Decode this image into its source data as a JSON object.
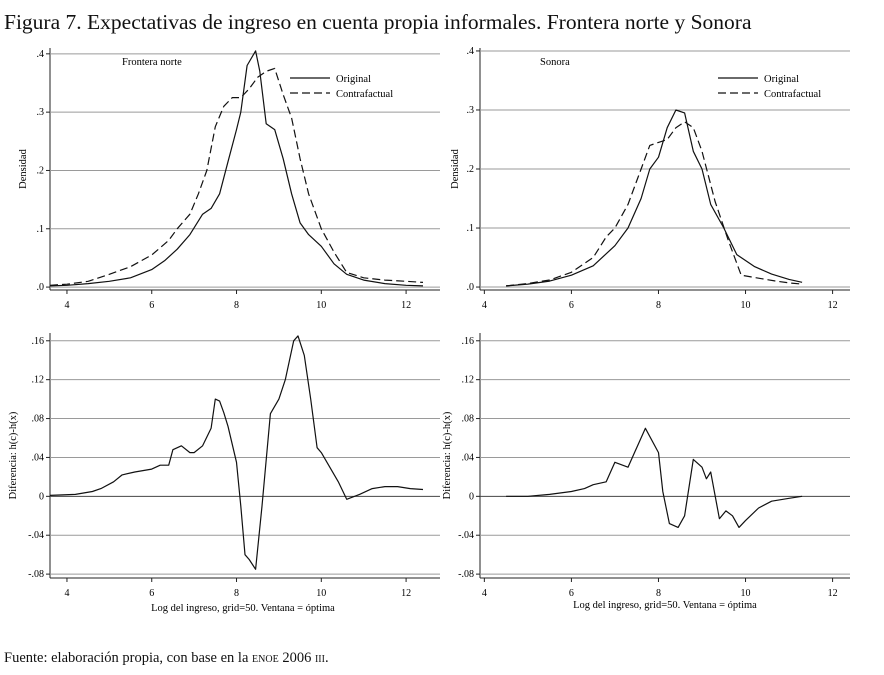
{
  "figure": {
    "title_label": "Figura 7.",
    "title_text": "Expectativas de ingreso en cuenta propia informales. Frontera norte y Sonora",
    "source_text": "Fuente: elaboración propia, con base en la",
    "source_enoe": "ENOE",
    "source_year": "2006",
    "source_quarter": "III",
    "source_end": "."
  },
  "chart_data": [
    {
      "type": "line",
      "title": "Frontera norte",
      "xlabel": "",
      "ylabel": "Densidad",
      "xlim": [
        3.6,
        12.8
      ],
      "ylim": [
        -0.005,
        0.41
      ],
      "xticks": [
        4,
        6,
        8,
        10,
        12
      ],
      "yticks": [
        0,
        0.1,
        0.2,
        0.3,
        0.4
      ],
      "ytick_labels": [
        ".0",
        ".1",
        ".2",
        ".3",
        ".4"
      ],
      "grid": true,
      "legend": "top-right",
      "series": [
        {
          "name": "Original",
          "style": "solid",
          "x": [
            3.6,
            4.0,
            4.5,
            5.0,
            5.5,
            6.0,
            6.3,
            6.6,
            6.9,
            7.2,
            7.4,
            7.6,
            7.8,
            8.0,
            8.1,
            8.25,
            8.45,
            8.55,
            8.7,
            8.9,
            9.1,
            9.3,
            9.5,
            9.7,
            10.0,
            10.3,
            10.6,
            11.0,
            11.5,
            12.0,
            12.4
          ],
          "y": [
            0.002,
            0.003,
            0.006,
            0.01,
            0.016,
            0.03,
            0.045,
            0.065,
            0.09,
            0.125,
            0.135,
            0.16,
            0.215,
            0.27,
            0.3,
            0.38,
            0.405,
            0.37,
            0.28,
            0.27,
            0.22,
            0.16,
            0.11,
            0.09,
            0.07,
            0.04,
            0.022,
            0.012,
            0.006,
            0.003,
            0.002
          ]
        },
        {
          "name": "Contrafactual",
          "style": "dashed",
          "x": [
            3.6,
            4.0,
            4.5,
            5.0,
            5.5,
            6.0,
            6.4,
            6.6,
            6.9,
            7.1,
            7.3,
            7.5,
            7.7,
            7.9,
            8.1,
            8.3,
            8.5,
            8.7,
            8.9,
            9.1,
            9.3,
            9.5,
            9.7,
            10.0,
            10.3,
            10.6,
            11.0,
            11.5,
            12.0,
            12.4
          ],
          "y": [
            0.003,
            0.005,
            0.01,
            0.022,
            0.035,
            0.055,
            0.08,
            0.1,
            0.125,
            0.16,
            0.2,
            0.275,
            0.31,
            0.325,
            0.325,
            0.34,
            0.36,
            0.37,
            0.375,
            0.33,
            0.29,
            0.22,
            0.16,
            0.1,
            0.06,
            0.025,
            0.016,
            0.012,
            0.01,
            0.008
          ]
        }
      ]
    },
    {
      "type": "line",
      "title": "Sonora",
      "xlabel": "",
      "ylabel": "Densidad",
      "xlim": [
        3.9,
        12.4
      ],
      "ylim": [
        -0.005,
        0.405
      ],
      "xticks": [
        4,
        6,
        8,
        10,
        12
      ],
      "yticks": [
        0,
        0.1,
        0.2,
        0.3,
        0.4
      ],
      "ytick_labels": [
        ".0",
        ".1",
        ".2",
        ".3",
        ".4"
      ],
      "grid": true,
      "legend": "top-right",
      "series": [
        {
          "name": "Original",
          "style": "solid",
          "x": [
            4.5,
            5.0,
            5.5,
            6.0,
            6.5,
            7.0,
            7.3,
            7.6,
            7.8,
            8.0,
            8.2,
            8.4,
            8.6,
            8.8,
            9.0,
            9.2,
            9.5,
            9.8,
            10.2,
            10.6,
            11.0,
            11.3
          ],
          "y": [
            0.002,
            0.005,
            0.01,
            0.02,
            0.036,
            0.07,
            0.1,
            0.15,
            0.2,
            0.22,
            0.27,
            0.3,
            0.295,
            0.23,
            0.2,
            0.14,
            0.1,
            0.055,
            0.035,
            0.022,
            0.013,
            0.008
          ]
        },
        {
          "name": "Contrafactual",
          "style": "dashed",
          "x": [
            4.5,
            5.0,
            5.5,
            6.0,
            6.5,
            6.8,
            7.0,
            7.3,
            7.6,
            7.8,
            8.0,
            8.2,
            8.4,
            8.6,
            8.8,
            9.0,
            9.3,
            9.6,
            9.9,
            10.3,
            10.7,
            11.0,
            11.3
          ],
          "y": [
            0.002,
            0.006,
            0.012,
            0.025,
            0.05,
            0.085,
            0.1,
            0.14,
            0.2,
            0.24,
            0.245,
            0.25,
            0.27,
            0.28,
            0.27,
            0.23,
            0.145,
            0.08,
            0.02,
            0.015,
            0.01,
            0.007,
            0.005
          ]
        }
      ]
    },
    {
      "type": "line",
      "title": "",
      "xlabel": "Log del ingreso, grid=50. Ventana = óptima",
      "ylabel": "Diferencia: h(c)-h(x)",
      "xlim": [
        3.6,
        12.8
      ],
      "ylim": [
        -0.084,
        0.168
      ],
      "xticks": [
        4,
        6,
        8,
        10,
        12
      ],
      "yticks": [
        -0.08,
        -0.04,
        0,
        0.04,
        0.08,
        0.12,
        0.16
      ],
      "ytick_labels": [
        "-.08",
        "-.04",
        "0",
        ".04",
        ".08",
        ".12",
        ".16"
      ],
      "grid": true,
      "series": [
        {
          "name": "Diferencia",
          "style": "solid",
          "x": [
            3.6,
            4.2,
            4.6,
            4.8,
            5.1,
            5.3,
            5.6,
            6.0,
            6.2,
            6.4,
            6.5,
            6.7,
            6.9,
            7.0,
            7.2,
            7.4,
            7.5,
            7.6,
            7.7,
            7.8,
            8.0,
            8.1,
            8.2,
            8.3,
            8.45,
            8.6,
            8.8,
            9.0,
            9.15,
            9.35,
            9.45,
            9.6,
            9.75,
            9.9,
            10.0,
            10.2,
            10.4,
            10.6,
            10.9,
            11.2,
            11.5,
            11.8,
            12.1,
            12.4
          ],
          "y": [
            0.001,
            0.002,
            0.005,
            0.008,
            0.015,
            0.022,
            0.025,
            0.028,
            0.032,
            0.032,
            0.048,
            0.052,
            0.045,
            0.045,
            0.052,
            0.07,
            0.1,
            0.098,
            0.086,
            0.072,
            0.035,
            -0.01,
            -0.06,
            -0.065,
            -0.075,
            -0.01,
            0.085,
            0.1,
            0.12,
            0.16,
            0.165,
            0.145,
            0.1,
            0.05,
            0.045,
            0.03,
            0.015,
            -0.003,
            0.002,
            0.008,
            0.01,
            0.01,
            0.008,
            0.007
          ]
        }
      ]
    },
    {
      "type": "line",
      "title": "",
      "xlabel": "Log del ingreso, grid=50. Ventana = óptima",
      "ylabel": "Diferencia: h(c)-h(x)",
      "xlim": [
        3.9,
        12.4
      ],
      "ylim": [
        -0.084,
        0.168
      ],
      "xticks": [
        4,
        6,
        8,
        10,
        12
      ],
      "yticks": [
        -0.08,
        -0.04,
        0,
        0.04,
        0.08,
        0.12,
        0.16
      ],
      "ytick_labels": [
        "-.08",
        "-.04",
        "0",
        ".04",
        ".08",
        ".12",
        ".16"
      ],
      "grid": true,
      "series": [
        {
          "name": "Diferencia",
          "style": "solid",
          "x": [
            4.5,
            5.0,
            5.5,
            6.0,
            6.3,
            6.5,
            6.8,
            7.0,
            7.3,
            7.5,
            7.7,
            8.0,
            8.1,
            8.25,
            8.45,
            8.6,
            8.8,
            9.0,
            9.1,
            9.2,
            9.4,
            9.55,
            9.7,
            9.85,
            10.0,
            10.3,
            10.6,
            11.0,
            11.3
          ],
          "y": [
            0,
            0,
            0.002,
            0.005,
            0.008,
            0.012,
            0.015,
            0.035,
            0.03,
            0.05,
            0.07,
            0.045,
            0.005,
            -0.028,
            -0.032,
            -0.02,
            0.038,
            0.03,
            0.018,
            0.025,
            -0.023,
            -0.015,
            -0.02,
            -0.032,
            -0.025,
            -0.012,
            -0.005,
            -0.002,
            0
          ]
        }
      ]
    }
  ]
}
